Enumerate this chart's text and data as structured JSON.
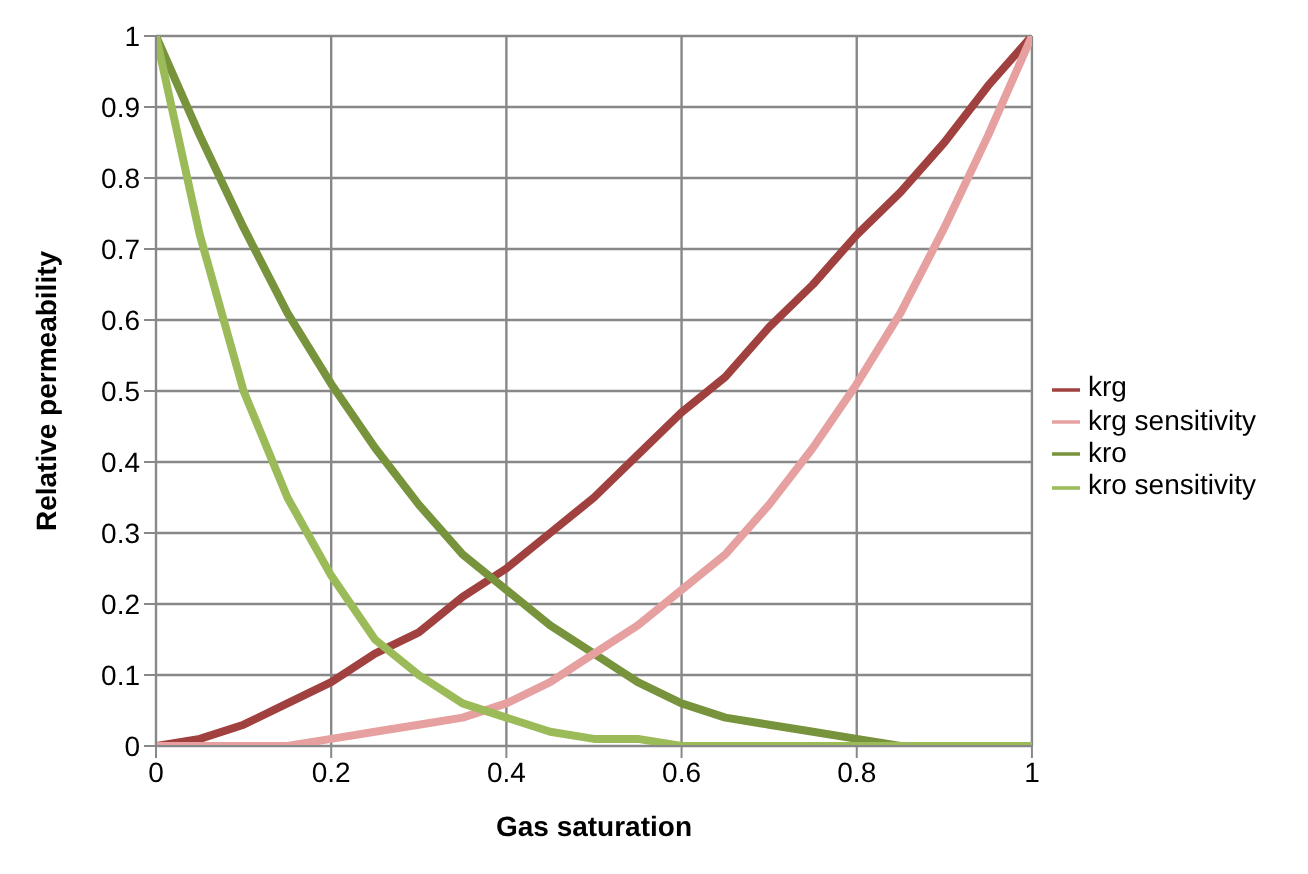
{
  "chart_data": {
    "type": "line",
    "xlabel": "Gas saturation",
    "ylabel": "Relative permeability",
    "x": [
      0,
      0.05,
      0.1,
      0.15,
      0.2,
      0.25,
      0.3,
      0.35,
      0.4,
      0.45,
      0.5,
      0.55,
      0.6,
      0.65,
      0.7,
      0.75,
      0.8,
      0.85,
      0.9,
      0.95,
      1
    ],
    "series": [
      {
        "name": "krg",
        "color": "#a0413f",
        "values": [
          0,
          0.01,
          0.03,
          0.06,
          0.09,
          0.13,
          0.16,
          0.21,
          0.25,
          0.3,
          0.35,
          0.41,
          0.47,
          0.52,
          0.59,
          0.65,
          0.72,
          0.78,
          0.85,
          0.93,
          1
        ]
      },
      {
        "name": "kro",
        "color": "#77933c",
        "values": [
          1,
          0.86,
          0.73,
          0.61,
          0.51,
          0.42,
          0.34,
          0.27,
          0.22,
          0.17,
          0.13,
          0.09,
          0.06,
          0.04,
          0.03,
          0.02,
          0.01,
          0,
          0,
          0,
          0
        ]
      },
      {
        "name": "krg sensitivity",
        "color": "#e6a0a0",
        "values": [
          0,
          0,
          0,
          0,
          0.01,
          0.02,
          0.03,
          0.04,
          0.06,
          0.09,
          0.13,
          0.17,
          0.22,
          0.27,
          0.34,
          0.42,
          0.51,
          0.61,
          0.73,
          0.86,
          1
        ]
      },
      {
        "name": "kro sensitivity",
        "color": "#9bbb59",
        "values": [
          1,
          0.72,
          0.5,
          0.35,
          0.24,
          0.15,
          0.1,
          0.06,
          0.04,
          0.02,
          0.01,
          0.01,
          0,
          0,
          0,
          0,
          0,
          0,
          0,
          0,
          0
        ]
      }
    ],
    "xlim": [
      0,
      1
    ],
    "xticks": [
      0,
      {
        "value": 0.2,
        "label": "0.2"
      },
      {
        "value": 0.4,
        "label": "0.4"
      },
      {
        "value": 0.6,
        "label": "0.6"
      },
      {
        "value": 0.8,
        "label": "0.8"
      },
      1
    ],
    "ylim": [
      0,
      1
    ],
    "yticks": [
      0,
      {
        "value": 0.1,
        "label": "0.1"
      },
      {
        "value": 0.2,
        "label": "0.2"
      },
      {
        "value": 0.3,
        "label": "0.3"
      },
      {
        "value": 0.4,
        "label": "0.4"
      },
      {
        "value": 0.5,
        "label": "0.5"
      },
      {
        "value": 0.6,
        "label": "0.6"
      },
      {
        "value": 0.7,
        "label": "0.7"
      },
      {
        "value": 0.8,
        "label": "0.8"
      },
      {
        "value": 0.9,
        "label": "0.9"
      },
      1
    ],
    "grid": true,
    "legend": "right",
    "marker": "none",
    "line_style": "solid"
  }
}
